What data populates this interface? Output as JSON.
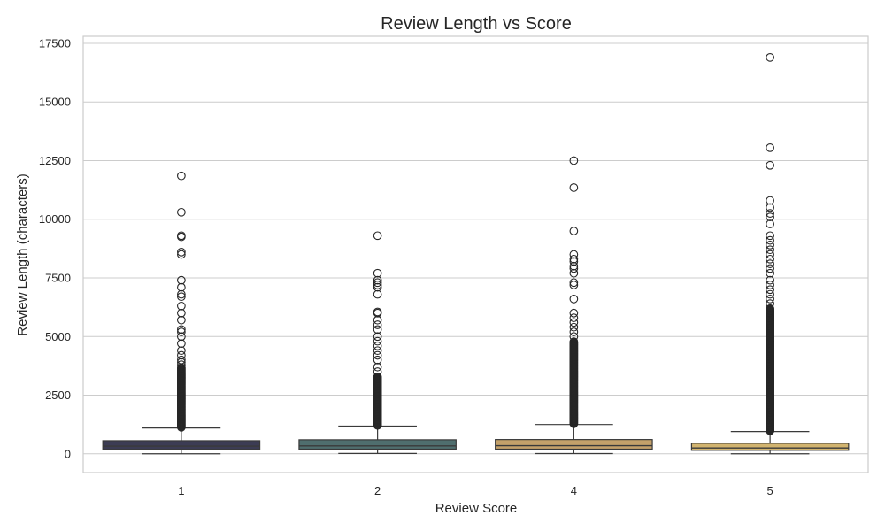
{
  "chart_data": {
    "type": "box",
    "title": "Review Length vs Score",
    "xlabel": "Review Score",
    "ylabel": "Review Length (characters)",
    "ylim": [
      -800,
      17800
    ],
    "yticks": [
      0,
      2500,
      5000,
      7500,
      10000,
      12500,
      15000,
      17500
    ],
    "grid": "horizontal",
    "categories": [
      "1",
      "2",
      "4",
      "5"
    ],
    "colors": [
      "#3c3c54",
      "#4f6e6e",
      "#c4a16a",
      "#d2b46f"
    ],
    "boxes": [
      {
        "category": "1",
        "min": 2,
        "q1": 190,
        "median": 330,
        "q3": 560,
        "whisker_high": 1100,
        "outlier_band": [
          1100,
          3700
        ],
        "outliers": [
          3800,
          3900,
          4000,
          4200,
          4400,
          4700,
          5000,
          5200,
          5300,
          5700,
          6000,
          6300,
          6700,
          6800,
          7100,
          7400,
          8500,
          8600,
          9250,
          9300,
          10300,
          11850
        ]
      },
      {
        "category": "2",
        "min": 15,
        "q1": 200,
        "median": 340,
        "q3": 600,
        "whisker_high": 1180,
        "outlier_band": [
          1180,
          3300
        ],
        "outliers": [
          3500,
          3700,
          4000,
          4200,
          4400,
          4600,
          4800,
          5000,
          5300,
          5500,
          5700,
          6000,
          6050,
          6800,
          7100,
          7200,
          7300,
          7400,
          7700,
          9300
        ]
      },
      {
        "category": "4",
        "min": 10,
        "q1": 200,
        "median": 350,
        "q3": 610,
        "whisker_high": 1250,
        "outlier_band": [
          1250,
          4800
        ],
        "outliers": [
          5000,
          5200,
          5400,
          5600,
          5800,
          6000,
          6600,
          7200,
          7300,
          7700,
          7900,
          8000,
          8200,
          8300,
          8500,
          9500,
          11350,
          12500
        ]
      },
      {
        "category": "5",
        "min": 2,
        "q1": 150,
        "median": 250,
        "q3": 450,
        "whisker_high": 950,
        "outlier_band": [
          950,
          6200
        ],
        "outliers": [
          6400,
          6600,
          6800,
          7000,
          7200,
          7400,
          7700,
          7900,
          8100,
          8300,
          8500,
          8700,
          8900,
          9100,
          9300,
          9800,
          10100,
          10250,
          10500,
          10800,
          12300,
          13050,
          16900
        ]
      }
    ]
  }
}
